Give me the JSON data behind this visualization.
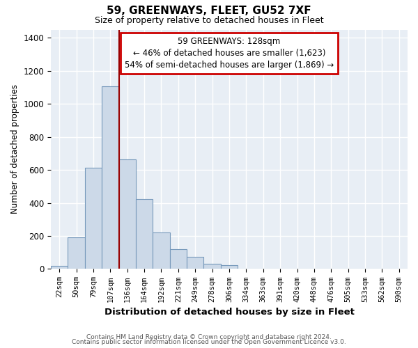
{
  "title": "59, GREENWAYS, FLEET, GU52 7XF",
  "subtitle": "Size of property relative to detached houses in Fleet",
  "xlabel": "Distribution of detached houses by size in Fleet",
  "ylabel": "Number of detached properties",
  "bar_labels": [
    "22sqm",
    "50sqm",
    "79sqm",
    "107sqm",
    "136sqm",
    "164sqm",
    "192sqm",
    "221sqm",
    "249sqm",
    "278sqm",
    "306sqm",
    "334sqm",
    "363sqm",
    "391sqm",
    "420sqm",
    "448sqm",
    "476sqm",
    "505sqm",
    "533sqm",
    "562sqm",
    "590sqm"
  ],
  "bar_values": [
    20,
    193,
    612,
    1107,
    665,
    425,
    222,
    122,
    75,
    30,
    22,
    3,
    2,
    0,
    0,
    0,
    0,
    0,
    0,
    0,
    0
  ],
  "bar_color": "#ccd9e8",
  "bar_edge_color": "#7799bb",
  "reference_line_color": "#990000",
  "annotation_line1": "59 GREENWAYS: 128sqm",
  "annotation_line2": "← 46% of detached houses are smaller (1,623)",
  "annotation_line3": "54% of semi-detached houses are larger (1,869) →",
  "annotation_box_color": "#ffffff",
  "annotation_box_edge_color": "#cc0000",
  "ylim": [
    0,
    1450
  ],
  "yticks": [
    0,
    200,
    400,
    600,
    800,
    1000,
    1200,
    1400
  ],
  "footer_line1": "Contains HM Land Registry data © Crown copyright and database right 2024.",
  "footer_line2": "Contains public sector information licensed under the Open Government Licence v3.0.",
  "background_color": "#ffffff",
  "plot_bg_color": "#e8eef5",
  "grid_color": "#ffffff"
}
